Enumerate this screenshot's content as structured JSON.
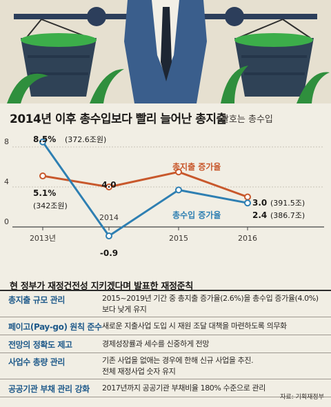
{
  "chart_data": {
    "type": "line",
    "title": "2014년 이후 총수입보다 빨리 늘어난 총지출",
    "subtitle": "괄호는 총수입",
    "x": [
      "2013년",
      "2014",
      "2015",
      "2016"
    ],
    "ylim": [
      0,
      8
    ],
    "yticks": [
      "8",
      "4",
      "0"
    ],
    "series": [
      {
        "name": "총지출 증가율",
        "color": "#c8582c",
        "values": [
          5.1,
          4.0,
          5.5,
          3.0
        ],
        "labels": [
          "5.1%",
          "4.0",
          "",
          "3.0"
        ],
        "notes": [
          "(342조원)",
          "",
          "",
          "(391.5조)"
        ]
      },
      {
        "name": "총수입 증가율",
        "color": "#2e7fb2",
        "values": [
          8.5,
          -0.9,
          3.7,
          2.4
        ],
        "labels": [
          "8.5%",
          "-0.9",
          "",
          "2.4"
        ],
        "notes": [
          "(372.6조원)",
          "",
          "",
          "(386.7조)"
        ]
      }
    ]
  },
  "table": {
    "heading": "현 정부가 재정건전성 지키겠다며 발표한 재정준칙",
    "rows": [
      {
        "label": "총지출 규모 관리",
        "desc": [
          "2015~2019년 기간 중 총지출 증가율(2.6%)을 총수입 증가율(4.0%)",
          "보다 낮게 유지"
        ]
      },
      {
        "label": "페이고(Pay-go) 원칙 준수",
        "desc": [
          "새로운 지출사업 도입 시 재원 조달 대책을 마련하도록 의무화"
        ]
      },
      {
        "label": "전망의 정확도 제고",
        "desc": [
          "경제성장률과 세수를 신중하게 전망"
        ]
      },
      {
        "label": "사업수 총량 관리",
        "desc": [
          "기존 사업을 없애는 경우에 한해 신규 사업을 추진.",
          "전체 재정사업 숫자 유지"
        ]
      },
      {
        "label": "공공기관 부채 관리 강화",
        "desc": [
          "2017년까지 공공기관 부채비율 180% 수준으로 관리"
        ]
      }
    ],
    "source": "자료: 기획재정부"
  },
  "colors": {
    "background": "#f1eee4",
    "accent_blue": "#1f5a8a",
    "spending": "#c8582c",
    "revenue": "#2e7fb2"
  }
}
